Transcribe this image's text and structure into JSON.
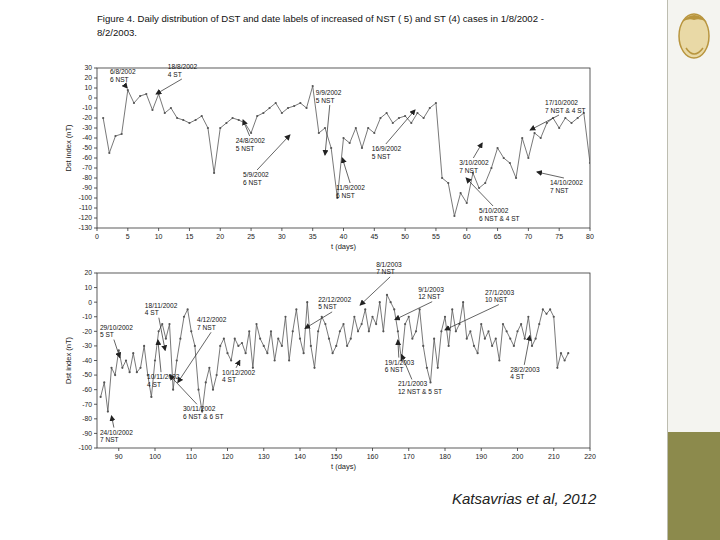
{
  "header": {
    "title": "Figure 4. Daily distribution of DST and date labels of increased of NST ( 5) and ST (4) cases in 1/8/2002 - 8/2/2003."
  },
  "footer": {
    "credit": "Katsavrias et al, 2012"
  },
  "chart_data": [
    {
      "type": "line",
      "x_label": "t (days)",
      "y_label": "Dst index (nT)",
      "color": "#555555",
      "marker": "circle",
      "line_style": "solid",
      "grid": false,
      "xlim": [
        0,
        80
      ],
      "ylim": [
        -130,
        30
      ],
      "xticks": [
        0,
        5,
        10,
        15,
        20,
        25,
        30,
        35,
        40,
        45,
        50,
        55,
        60,
        65,
        70,
        75,
        80
      ],
      "yticks": [
        -130,
        -120,
        -110,
        -100,
        -90,
        -80,
        -70,
        -60,
        -50,
        -40,
        -30,
        -20,
        -10,
        0,
        10,
        20,
        30
      ],
      "x": [
        1,
        2,
        3,
        4,
        5,
        6,
        7,
        8,
        9,
        10,
        11,
        12,
        13,
        14,
        15,
        16,
        17,
        18,
        19,
        20,
        21,
        22,
        23,
        24,
        25,
        26,
        27,
        28,
        29,
        30,
        31,
        32,
        33,
        34,
        35,
        36,
        37,
        38,
        39,
        40,
        41,
        42,
        43,
        44,
        45,
        46,
        47,
        48,
        49,
        50,
        51,
        52,
        53,
        54,
        55,
        56,
        57,
        58,
        59,
        60,
        61,
        62,
        63,
        64,
        65,
        66,
        67,
        68,
        69,
        70,
        71,
        72,
        73,
        74,
        75,
        76,
        77,
        78,
        79,
        80
      ],
      "values": [
        -20,
        -55,
        -38,
        -36,
        8,
        -5,
        2,
        4,
        -12,
        4,
        -15,
        -10,
        -20,
        -22,
        -25,
        -22,
        -18,
        -30,
        -75,
        -30,
        -25,
        -20,
        -22,
        -25,
        -35,
        -18,
        -15,
        -10,
        -5,
        -15,
        -10,
        -8,
        -5,
        -10,
        12,
        -35,
        -30,
        -50,
        -100,
        -40,
        -45,
        -30,
        -50,
        -30,
        -35,
        -20,
        -15,
        -25,
        -20,
        -18,
        -25,
        -15,
        -20,
        -10,
        -5,
        -80,
        -85,
        -118,
        -95,
        -105,
        -75,
        -90,
        -85,
        -70,
        -50,
        -60,
        -65,
        -80,
        -40,
        -60,
        -35,
        -40,
        -25,
        -20,
        -30,
        -20,
        -25,
        -20,
        -15,
        -65
      ],
      "annotations": [
        {
          "lines": [
            "6/8/2002",
            "6 NST"
          ],
          "x": 4.9,
          "y": 10,
          "text_x": 2.1,
          "text_y": 31
        },
        {
          "lines": [
            "18/8/2002",
            "4 ST"
          ],
          "x": 9.6,
          "y": 4,
          "text_x": 11.5,
          "text_y": 36
        },
        {
          "lines": [
            "24/8/2002",
            "5 NST"
          ],
          "x": 23.7,
          "y": -22,
          "text_x": 22.5,
          "text_y": -38
        },
        {
          "lines": [
            "5/9/2002",
            "6 NST"
          ],
          "x": 31.3,
          "y": -37,
          "text_x": 23.7,
          "text_y": -72
        },
        {
          "lines": [
            "9/9/2002",
            "5 NST"
          ],
          "x": 37,
          "y": -57,
          "text_x": 35.5,
          "text_y": 10
        },
        {
          "lines": [
            "11/9/2002",
            "6 NST"
          ],
          "x": 39.8,
          "y": -60,
          "text_x": 38.8,
          "text_y": -85
        },
        {
          "lines": [
            "16/9/2002",
            "5 NST"
          ],
          "x": 51.6,
          "y": -12,
          "text_x": 44.6,
          "text_y": -46
        },
        {
          "lines": [
            "3/10/2002",
            "7 NST"
          ],
          "x": 62.5,
          "y": -45,
          "text_x": 58.8,
          "text_y": -60
        },
        {
          "lines": [
            "5/10/2002",
            "6 NST & 4 ST"
          ],
          "x": 59.9,
          "y": -80,
          "text_x": 62,
          "text_y": -108
        },
        {
          "lines": [
            "14/10/2002",
            "7 NST"
          ],
          "x": 71.4,
          "y": -74,
          "text_x": 73.5,
          "text_y": -80
        },
        {
          "lines": [
            "17/10/2002",
            "7 NST & 4 ST"
          ],
          "x": 70.3,
          "y": -32,
          "text_x": 72.7,
          "text_y": 0
        }
      ]
    },
    {
      "type": "line",
      "x_label": "t (days)",
      "y_label": "Dst index (nT)",
      "color": "#555555",
      "marker": "circle",
      "line_style": "solid",
      "grid": false,
      "xlim": [
        84,
        220
      ],
      "ylim": [
        -100,
        20
      ],
      "xticks": [
        90,
        100,
        110,
        120,
        130,
        140,
        150,
        160,
        170,
        180,
        190,
        200,
        210,
        220
      ],
      "yticks": [
        -100,
        -90,
        -80,
        -70,
        -60,
        -50,
        -40,
        -30,
        -20,
        -10,
        0,
        10,
        20
      ],
      "x": [
        85,
        86,
        87,
        88,
        89,
        90,
        91,
        92,
        93,
        94,
        95,
        96,
        97,
        98,
        99,
        100,
        101,
        102,
        103,
        104,
        105,
        106,
        107,
        108,
        109,
        110,
        111,
        112,
        113,
        114,
        115,
        116,
        117,
        118,
        119,
        120,
        121,
        122,
        123,
        124,
        125,
        126,
        127,
        128,
        129,
        130,
        131,
        132,
        133,
        134,
        135,
        136,
        137,
        138,
        139,
        140,
        141,
        142,
        143,
        144,
        145,
        146,
        147,
        148,
        149,
        150,
        151,
        152,
        153,
        154,
        155,
        156,
        157,
        158,
        159,
        160,
        161,
        162,
        163,
        164,
        165,
        166,
        167,
        168,
        169,
        170,
        171,
        172,
        173,
        174,
        175,
        176,
        177,
        178,
        179,
        180,
        181,
        182,
        183,
        184,
        185,
        186,
        187,
        188,
        189,
        190,
        191,
        192,
        193,
        194,
        195,
        196,
        197,
        198,
        199,
        200,
        201,
        202,
        203,
        204,
        205,
        206,
        207,
        208,
        209,
        210,
        211,
        212,
        213,
        214
      ],
      "values": [
        -65,
        -55,
        -75,
        -45,
        -50,
        -33,
        -45,
        -40,
        -48,
        -35,
        -48,
        -45,
        -30,
        -50,
        -65,
        -40,
        -20,
        -15,
        -25,
        -15,
        -60,
        -40,
        -25,
        -10,
        -5,
        -20,
        -30,
        -60,
        -75,
        -55,
        -45,
        -60,
        -50,
        -30,
        -25,
        -35,
        -40,
        -25,
        -30,
        -28,
        -35,
        -20,
        -45,
        -15,
        -25,
        -30,
        -35,
        -20,
        -40,
        -25,
        -30,
        -10,
        -40,
        -20,
        -5,
        -25,
        -35,
        0,
        -30,
        -45,
        -20,
        -10,
        -15,
        -25,
        -35,
        -30,
        -20,
        -15,
        -30,
        -25,
        -10,
        -20,
        -15,
        -5,
        -20,
        -10,
        -15,
        0,
        -20,
        5,
        0,
        -5,
        -20,
        -40,
        -15,
        -10,
        -25,
        -20,
        -5,
        -30,
        -45,
        -55,
        -25,
        -45,
        -20,
        -10,
        -30,
        -5,
        -20,
        -15,
        0,
        -25,
        -20,
        -30,
        -35,
        -15,
        -25,
        -20,
        -30,
        -25,
        -40,
        -15,
        -20,
        -25,
        -30,
        -20,
        -15,
        -25,
        -10,
        -30,
        -25,
        -15,
        -5,
        -8,
        -5,
        -10,
        -45,
        -35,
        -40,
        -35
      ],
      "annotations": [
        {
          "lines": [
            "29/10/2002",
            "5 ST"
          ],
          "x": 90.3,
          "y": -38,
          "text_x": 84.8,
          "text_y": -14
        },
        {
          "lines": [
            "24/10/2002",
            "7 NST"
          ],
          "x": 88,
          "y": -78,
          "text_x": 84.8,
          "text_y": -86
        },
        {
          "lines": [
            "18/11/2002",
            "4 ST"
          ],
          "x": 102.8,
          "y": -33,
          "text_x": 97.2,
          "text_y": 1
        },
        {
          "lines": [
            "10/11/2002",
            "4 ST"
          ],
          "x": 100.8,
          "y": -26,
          "text_x": 97.8,
          "text_y": -48
        },
        {
          "lines": [
            "4/12/2002",
            "7 NST"
          ],
          "x": 106.3,
          "y": -55,
          "text_x": 111.6,
          "text_y": -9
        },
        {
          "lines": [
            "10/12/2002",
            "4 ST"
          ],
          "x": 123.4,
          "y": -40,
          "text_x": 118.5,
          "text_y": -45
        },
        {
          "lines": [
            "30/11/2002",
            "6 NST & 6 ST"
          ],
          "x": 104,
          "y": -50,
          "text_x": 107.7,
          "text_y": -70
        },
        {
          "lines": [
            "22/12/2002",
            "5 NST"
          ],
          "x": 141.4,
          "y": -18,
          "text_x": 145,
          "text_y": 5
        },
        {
          "lines": [
            "8/1/2003",
            "7 NST"
          ],
          "x": 156.6,
          "y": -2,
          "text_x": 161,
          "text_y": 29
        },
        {
          "lines": [
            "9/1/2003",
            "12 NST"
          ],
          "x": 166.2,
          "y": -12,
          "text_x": 172.6,
          "text_y": 12
        },
        {
          "lines": [
            "19/1/2003",
            "6 NST"
          ],
          "x": 167,
          "y": -26,
          "text_x": 163.4,
          "text_y": -38
        },
        {
          "lines": [
            "21/1/2003",
            "12 NST & 5 ST"
          ],
          "x": 168,
          "y": -36,
          "text_x": 167,
          "text_y": -53
        },
        {
          "lines": [
            "27/1/2003",
            "10 NST"
          ],
          "x": 180,
          "y": -19,
          "text_x": 191,
          "text_y": 10
        },
        {
          "lines": [
            "28/2/2003",
            "4 ST"
          ],
          "x": 203.4,
          "y": -23,
          "text_x": 198,
          "text_y": -43
        }
      ]
    }
  ]
}
